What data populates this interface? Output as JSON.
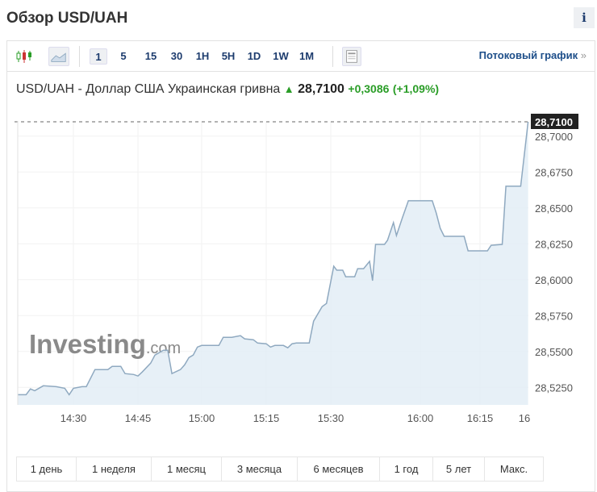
{
  "header": {
    "title": "Обзор USD/UAH",
    "info_label": "i"
  },
  "toolbar": {
    "icons": [
      "candlestick-icon",
      "area-chart-icon",
      "table-icon"
    ],
    "intervals": [
      "1",
      "5",
      "15",
      "30",
      "1H",
      "5H",
      "1D",
      "1W",
      "1M"
    ],
    "active_interval": "1",
    "stream_label": "Потоковый график",
    "stream_arrow": "»"
  },
  "quote": {
    "name": "USD/UAH - Доллар США Украинская гривна",
    "arrow": "▲",
    "last": "28,7100",
    "change": "+0,3086",
    "change_pct": "(+1,09%)"
  },
  "colors": {
    "line": "#8fa9c0",
    "fill": "#e3edf6",
    "up": "#2a9d27",
    "tag_bg": "#222222"
  },
  "watermark": "Investing.com",
  "ranges": [
    "1 день",
    "1 неделя",
    "1 месяц",
    "3 месяца",
    "6 месяцев",
    "1 год",
    "5 лет",
    "Макс."
  ],
  "chart_data": {
    "type": "area",
    "ylim": [
      28.5128,
      28.71
    ],
    "y_ticks": [
      "28,7000",
      "28,6750",
      "28,6500",
      "28,6250",
      "28,6000",
      "28,5750",
      "28,5500",
      "28,5250"
    ],
    "y_tick_values": [
      28.7,
      28.675,
      28.65,
      28.625,
      28.6,
      28.575,
      28.55,
      28.525
    ],
    "x_ticks": [
      "14:30",
      "14:45",
      "15:00",
      "15:15",
      "15:30",
      "16:00",
      "16:15",
      "16"
    ],
    "last_value_label": "28,7100",
    "last_value": 28.71,
    "grid": true,
    "points": [
      [
        "14:17",
        28.5199
      ],
      [
        "14:19",
        28.5199
      ],
      [
        "14:20",
        28.5239
      ],
      [
        "14:21",
        28.5227
      ],
      [
        "14:23",
        28.5261
      ],
      [
        "14:26",
        28.5255
      ],
      [
        "14:28",
        28.5244
      ],
      [
        "14:29",
        28.5199
      ],
      [
        "14:30",
        28.5244
      ],
      [
        "14:32",
        28.5255
      ],
      [
        "14:33",
        28.5255
      ],
      [
        "14:35",
        28.5374
      ],
      [
        "14:38",
        28.5374
      ],
      [
        "14:39",
        28.5396
      ],
      [
        "14:41",
        28.5396
      ],
      [
        "14:42",
        28.5346
      ],
      [
        "14:44",
        28.534
      ],
      [
        "14:45",
        28.5329
      ],
      [
        "14:46",
        28.5357
      ],
      [
        "14:48",
        28.5419
      ],
      [
        "14:49",
        28.5475
      ],
      [
        "14:51",
        28.5509
      ],
      [
        "14:52",
        28.5509
      ],
      [
        "14:53",
        28.5346
      ],
      [
        "14:55",
        28.5374
      ],
      [
        "14:56",
        28.5407
      ],
      [
        "14:57",
        28.5458
      ],
      [
        "14:58",
        28.5475
      ],
      [
        "14:59",
        28.5531
      ],
      [
        "15:00",
        28.5542
      ],
      [
        "15:04",
        28.5542
      ],
      [
        "15:05",
        28.5599
      ],
      [
        "15:07",
        28.5599
      ],
      [
        "15:09",
        28.561
      ],
      [
        "15:10",
        28.5588
      ],
      [
        "15:12",
        28.5582
      ],
      [
        "15:13",
        28.5559
      ],
      [
        "15:15",
        28.5554
      ],
      [
        "15:16",
        28.5531
      ],
      [
        "15:17",
        28.5542
      ],
      [
        "15:19",
        28.5542
      ],
      [
        "15:20",
        28.5526
      ],
      [
        "15:21",
        28.5554
      ],
      [
        "15:22",
        28.5559
      ],
      [
        "15:25",
        28.5559
      ],
      [
        "15:26",
        28.5711
      ],
      [
        "15:28",
        28.5813
      ],
      [
        "15:29",
        28.5835
      ],
      [
        "15:31",
        28.6094
      ],
      [
        "15:32",
        28.6066
      ],
      [
        "15:34",
        28.6066
      ],
      [
        "15:35",
        28.6021
      ],
      [
        "15:38",
        28.6021
      ],
      [
        "15:39",
        28.6077
      ],
      [
        "15:41",
        28.6077
      ],
      [
        "15:43",
        28.6128
      ],
      [
        "15:44",
        28.5993
      ],
      [
        "15:45",
        28.6246
      ],
      [
        "15:48",
        28.6246
      ],
      [
        "15:49",
        28.6274
      ],
      [
        "15:51",
        28.6398
      ],
      [
        "15:52",
        28.6308
      ],
      [
        "15:54",
        28.6432
      ],
      [
        "15:56",
        28.655
      ],
      [
        "16:03",
        28.655
      ],
      [
        "16:04",
        28.6465
      ],
      [
        "16:05",
        28.6358
      ],
      [
        "16:06",
        28.6302
      ],
      [
        "16:11",
        28.6302
      ],
      [
        "16:12",
        28.6201
      ],
      [
        "16:17",
        28.6201
      ],
      [
        "16:18",
        28.624
      ],
      [
        "16:21",
        28.6246
      ],
      [
        "16:22",
        28.6651
      ],
      [
        "16:26",
        28.6651
      ],
      [
        "16:28",
        28.71
      ]
    ]
  }
}
